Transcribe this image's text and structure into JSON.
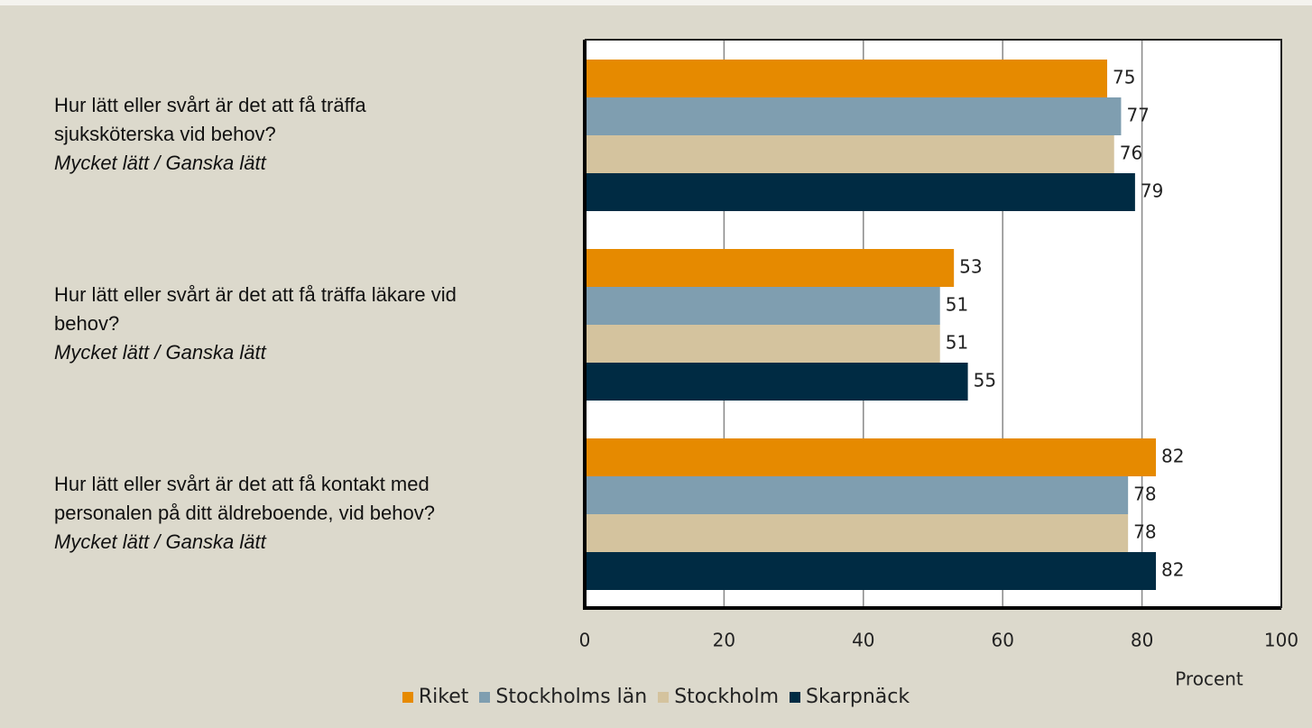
{
  "chart_data": {
    "type": "bar",
    "orientation": "horizontal",
    "categories": [
      "Hur lätt eller svårt är det att få träffa sjuksköterska vid behov?",
      "Hur lätt eller svårt är det att få träffa läkare vid behov?",
      "Hur lätt eller svårt är det att få kontakt med personalen på ditt äldreboende, vid behov?"
    ],
    "category_subtitles": [
      "Mycket lätt / Ganska lätt",
      "Mycket lätt / Ganska lätt",
      "Mycket lätt / Ganska lätt"
    ],
    "series": [
      {
        "name": "Riket",
        "color": "#e68a00",
        "values": [
          75,
          53,
          82
        ]
      },
      {
        "name": "Stockholms län",
        "color": "#7f9eb0",
        "values": [
          77,
          51,
          78
        ]
      },
      {
        "name": "Stockholm",
        "color": "#d4c39e",
        "values": [
          76,
          51,
          78
        ]
      },
      {
        "name": "Skarpnäck",
        "color": "#002b43",
        "values": [
          79,
          55,
          82
        ]
      }
    ],
    "xlabel": "Procent",
    "xlim": [
      0,
      100
    ],
    "xticks": [
      0,
      20,
      40,
      60,
      80,
      100
    ],
    "grid": true,
    "legend": "bottom"
  }
}
